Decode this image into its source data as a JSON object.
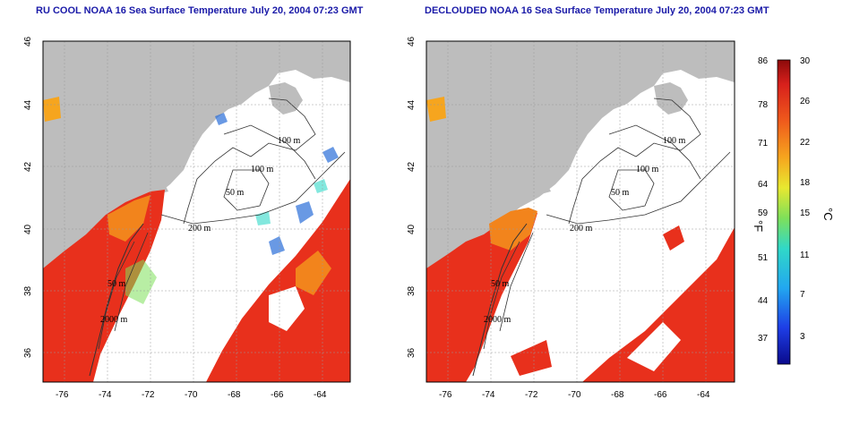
{
  "panels": [
    {
      "title": "RU COOL NOAA 16 Sea Surface Temperature July 20, 2004 07:23 GMT",
      "x_ticks": [
        "-76",
        "-74",
        "-72",
        "-70",
        "-68",
        "-66",
        "-64"
      ],
      "y_ticks": [
        "46",
        "44",
        "42",
        "40",
        "38",
        "36"
      ],
      "contour_labels": [
        "100 m",
        "100 m",
        "50 m",
        "200 m",
        "50 m",
        "2000 m"
      ]
    },
    {
      "title": "DECLOUDED NOAA 16 Sea Surface Temperature July 20, 2004 07:23 GMT",
      "x_ticks": [
        "-76",
        "-74",
        "-72",
        "-70",
        "-68",
        "-66",
        "-64"
      ],
      "y_ticks": [
        "46",
        "44",
        "42",
        "40",
        "38",
        "36"
      ],
      "contour_labels": [
        "100 m",
        "100 m",
        "50 m",
        "200 m",
        "50 m",
        "2000 m"
      ]
    }
  ],
  "colorbar": {
    "f_label": "°F",
    "c_label": "°C",
    "f_ticks": [
      "86",
      "78",
      "71",
      "64",
      "59",
      "51",
      "44",
      "37"
    ],
    "c_ticks": [
      "30",
      "26",
      "22",
      "18",
      "15",
      "11",
      "7",
      "3"
    ]
  },
  "colors": {
    "land": "#bdbdbd",
    "cloud": "#ffffff",
    "sst_warm": "#e8301c",
    "sst_orange": "#f2841c",
    "sst_cool": "#2a6ed8",
    "title": "#1a1aa8"
  }
}
